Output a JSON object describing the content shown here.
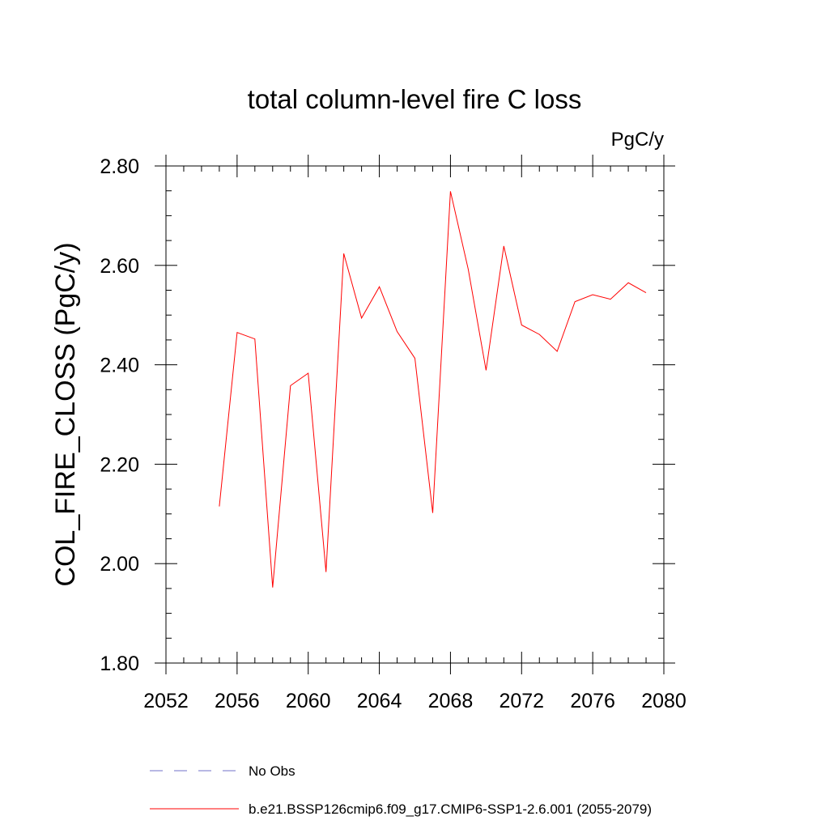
{
  "chart_data": {
    "type": "line",
    "title": "total column-level fire C loss",
    "units": "PgC/y",
    "xlabel": "",
    "ylabel": "COL_FIRE_CLOSS  (PgC/y)",
    "xlim": [
      2052,
      2080
    ],
    "ylim": [
      1.8,
      2.8
    ],
    "x_ticks": [
      2052,
      2056,
      2060,
      2064,
      2068,
      2072,
      2076,
      2080
    ],
    "x_tick_labels": [
      "2052",
      "2056",
      "2060",
      "2064",
      "2068",
      "2072",
      "2076",
      "2080"
    ],
    "y_ticks": [
      1.8,
      2.0,
      2.2,
      2.4,
      2.6,
      2.8
    ],
    "y_tick_labels": [
      "1.80",
      "2.00",
      "2.20",
      "2.40",
      "2.60",
      "2.80"
    ],
    "grid": false,
    "legend_position": "bottom",
    "series": [
      {
        "name": "b.e21.BSSP126cmip6.f09_g17.CMIP6-SSP1-2.6.001 (2055-2079)",
        "color": "#ff0000",
        "style": "solid",
        "x": [
          2055,
          2056,
          2057,
          2058,
          2059,
          2060,
          2061,
          2062,
          2063,
          2064,
          2065,
          2066,
          2067,
          2068,
          2069,
          2070,
          2071,
          2072,
          2073,
          2074,
          2075,
          2076,
          2077,
          2078,
          2079
        ],
        "y": [
          2.115,
          2.465,
          2.452,
          1.952,
          2.358,
          2.383,
          1.983,
          2.624,
          2.494,
          2.557,
          2.467,
          2.413,
          2.102,
          2.749,
          2.592,
          2.389,
          2.639,
          2.48,
          2.461,
          2.427,
          2.527,
          2.541,
          2.532,
          2.565,
          2.545
        ]
      }
    ],
    "legend": [
      {
        "label": "No Obs",
        "color": "#7070c8",
        "style": "dashed"
      },
      {
        "label": "b.e21.BSSP126cmip6.f09_g17.CMIP6-SSP1-2.6.001 (2055-2079)",
        "color": "#ff0000",
        "style": "solid"
      }
    ]
  }
}
